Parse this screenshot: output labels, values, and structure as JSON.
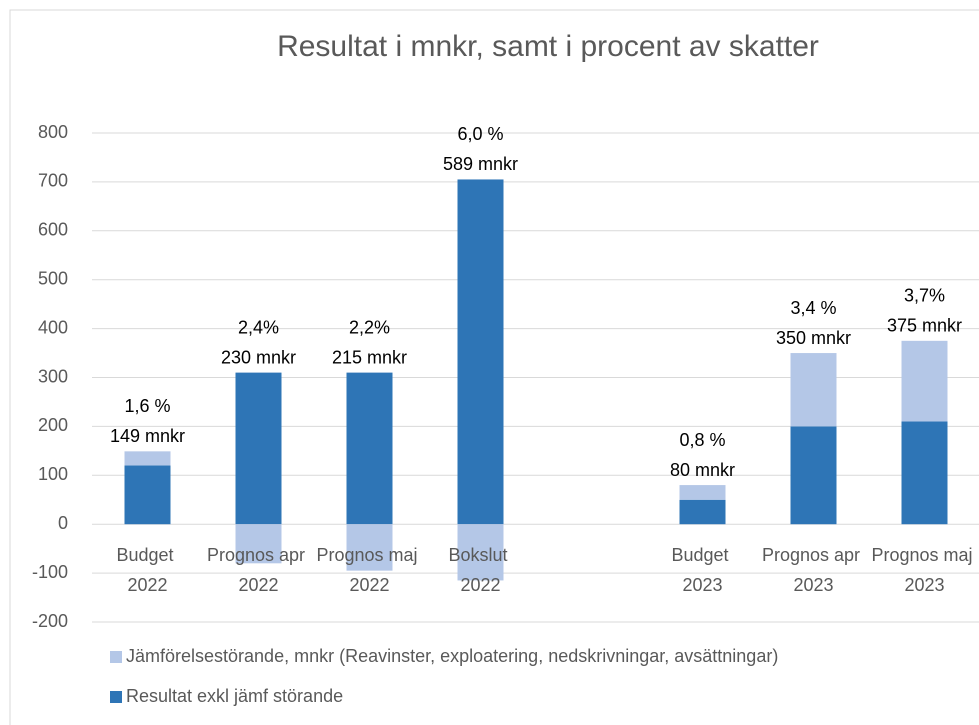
{
  "chart_data": {
    "type": "stacked_bar",
    "title": "Resultat i mnkr, samt i procent av skatter",
    "categories": [
      "Budget 2022",
      "Prognos apr 2022",
      "Prognos maj 2022",
      "Bokslut 2022",
      null,
      "Budget 2023",
      "Prognos apr 2023",
      "Prognos maj 2023"
    ],
    "series": [
      {
        "name": "Resultat exkl jämf störande",
        "color": "#2e75b6",
        "values": [
          120,
          310,
          310,
          705,
          null,
          50,
          200,
          210
        ]
      },
      {
        "name": "Jämförelsestörande, mnkr (Reavinster, exploatering, nedskrivningar, avsättningar)",
        "color": "#b4c7e7",
        "values": [
          29,
          -80,
          -95,
          -115,
          null,
          30,
          150,
          165
        ]
      }
    ],
    "annotations": [
      [
        "1,6 %",
        "149 mnkr"
      ],
      [
        "2,4%",
        "230 mnkr"
      ],
      [
        "2,2%",
        "215 mnkr"
      ],
      [
        "6,0 %",
        "589 mnkr"
      ],
      null,
      [
        "0,8 %",
        "80 mnkr"
      ],
      [
        "3,4 %",
        "350 mnkr"
      ],
      [
        "3,7%",
        "375 mnkr"
      ]
    ],
    "ylim": [
      -200,
      800
    ],
    "yticks": [
      -200,
      -100,
      0,
      100,
      200,
      300,
      400,
      500,
      600,
      700,
      800
    ],
    "grid": true,
    "legend": "bottom-left"
  }
}
